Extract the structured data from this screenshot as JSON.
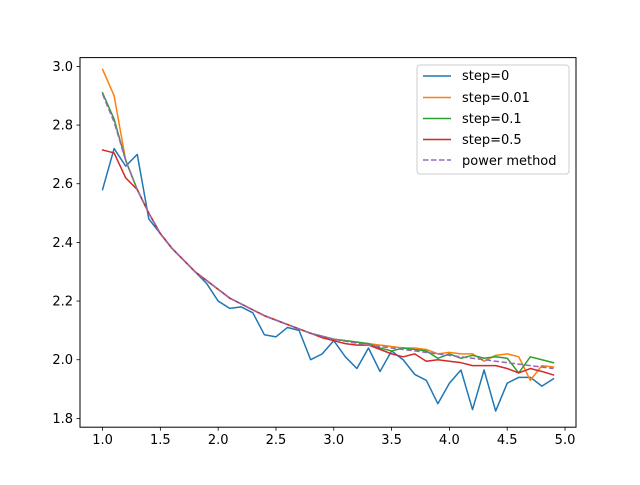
{
  "chart_data": {
    "type": "line",
    "title": "",
    "xlabel": "",
    "ylabel": "",
    "xlim": [
      0.805,
      5.095
    ],
    "ylim": [
      1.77,
      3.03
    ],
    "x_ticks": [
      1.0,
      1.5,
      2.0,
      2.5,
      3.0,
      3.5,
      4.0,
      4.5,
      5.0
    ],
    "x_tick_labels": [
      "1.0",
      "1.5",
      "2.0",
      "2.5",
      "3.0",
      "3.5",
      "4.0",
      "4.5",
      "5.0"
    ],
    "y_ticks": [
      1.8,
      2.0,
      2.2,
      2.4,
      2.6,
      2.8,
      3.0
    ],
    "y_tick_labels": [
      "1.8",
      "2.0",
      "2.2",
      "2.4",
      "2.6",
      "2.8",
      "3.0"
    ],
    "grid": false,
    "legend_position": "top-right",
    "x": [
      1.0,
      1.1,
      1.2,
      1.3,
      1.4,
      1.5,
      1.6,
      1.7,
      1.8,
      1.9,
      2.0,
      2.1,
      2.2,
      2.3,
      2.4,
      2.5,
      2.6,
      2.7,
      2.8,
      2.9,
      3.0,
      3.1,
      3.2,
      3.3,
      3.4,
      3.5,
      3.6,
      3.7,
      3.8,
      3.9,
      4.0,
      4.1,
      4.2,
      4.3,
      4.4,
      4.5,
      4.6,
      4.7,
      4.8,
      4.9
    ],
    "series": [
      {
        "name": "step=0",
        "color": "#1f77b4",
        "dash": "solid",
        "values": [
          2.58,
          2.72,
          2.66,
          2.7,
          2.48,
          2.43,
          2.38,
          2.34,
          2.3,
          2.26,
          2.2,
          2.175,
          2.18,
          2.16,
          2.085,
          2.078,
          2.11,
          2.1,
          2.0,
          2.02,
          2.065,
          2.01,
          1.97,
          2.04,
          1.96,
          2.03,
          2.0,
          1.95,
          1.93,
          1.85,
          1.92,
          1.965,
          1.83,
          1.965,
          1.825,
          1.92,
          1.94,
          1.94,
          1.91,
          1.935
        ]
      },
      {
        "name": "step=0.01",
        "color": "#ff7f0e",
        "dash": "solid",
        "values": [
          2.99,
          2.9,
          2.68,
          2.58,
          2.5,
          2.43,
          2.38,
          2.34,
          2.3,
          2.27,
          2.24,
          2.21,
          2.19,
          2.17,
          2.15,
          2.135,
          2.12,
          2.105,
          2.09,
          2.08,
          2.07,
          2.065,
          2.06,
          2.055,
          2.05,
          2.045,
          2.04,
          2.04,
          2.035,
          2.02,
          2.025,
          2.02,
          2.02,
          1.995,
          2.015,
          2.02,
          2.01,
          1.93,
          1.98,
          1.975
        ]
      },
      {
        "name": "step=0.1",
        "color": "#2ca02c",
        "dash": "solid",
        "values": [
          2.91,
          2.82,
          2.68,
          2.58,
          2.5,
          2.43,
          2.38,
          2.34,
          2.3,
          2.27,
          2.24,
          2.21,
          2.19,
          2.17,
          2.15,
          2.135,
          2.12,
          2.105,
          2.09,
          2.08,
          2.07,
          2.065,
          2.06,
          2.055,
          2.04,
          2.03,
          2.04,
          2.035,
          2.03,
          2.005,
          2.02,
          2.005,
          2.015,
          2.005,
          2.01,
          2.005,
          1.955,
          2.01,
          2.0,
          1.99
        ]
      },
      {
        "name": "step=0.5",
        "color": "#d62728",
        "dash": "solid",
        "values": [
          2.715,
          2.705,
          2.62,
          2.58,
          2.5,
          2.43,
          2.38,
          2.34,
          2.3,
          2.27,
          2.24,
          2.21,
          2.19,
          2.17,
          2.15,
          2.135,
          2.12,
          2.105,
          2.09,
          2.075,
          2.065,
          2.055,
          2.05,
          2.05,
          2.035,
          2.02,
          2.01,
          2.02,
          1.995,
          2.0,
          1.995,
          1.99,
          1.98,
          1.98,
          1.98,
          1.97,
          1.955,
          1.97,
          1.96,
          1.948
        ]
      },
      {
        "name": "power method",
        "color": "#9467bd",
        "dash": "dashed",
        "values": [
          2.905,
          2.81,
          2.68,
          2.58,
          2.5,
          2.43,
          2.38,
          2.34,
          2.3,
          2.27,
          2.24,
          2.21,
          2.19,
          2.17,
          2.15,
          2.135,
          2.12,
          2.105,
          2.09,
          2.08,
          2.07,
          2.063,
          2.056,
          2.05,
          2.045,
          2.04,
          2.035,
          2.03,
          2.025,
          2.02,
          2.015,
          2.01,
          2.005,
          2.0,
          1.995,
          1.99,
          1.985,
          1.98,
          1.975,
          1.97
        ]
      }
    ]
  }
}
